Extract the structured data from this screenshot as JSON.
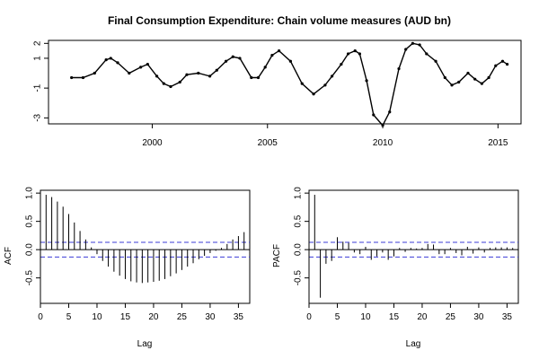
{
  "chart_data": [
    {
      "type": "line",
      "title": "Final Consumption Expenditure: Chain volume measures (AUD bn)",
      "xlabel": "",
      "ylabel": "",
      "xlim": [
        1995.5,
        2016.0
      ],
      "ylim": [
        -3.4,
        2.2
      ],
      "x_ticks": [
        2000,
        2005,
        2010,
        2015
      ],
      "y_ticks": [
        -3,
        -1,
        1,
        2
      ],
      "grid": false,
      "markers": true,
      "series": [
        {
          "x": [
            1996.5,
            1997.0,
            1997.5,
            1998.0,
            1998.2,
            1998.5,
            1999.0,
            1999.5,
            1999.8,
            2000.2,
            2000.5,
            2000.8,
            2001.2,
            2001.5,
            2002.0,
            2002.5,
            2002.8,
            2003.2,
            2003.5,
            2003.8,
            2004.3,
            2004.6,
            2004.9,
            2005.2,
            2005.5,
            2006.0,
            2006.5,
            2007.0,
            2007.5,
            2007.8,
            2008.2,
            2008.5,
            2008.8,
            2009.0,
            2009.3,
            2009.6,
            2010.0,
            2010.3,
            2010.7,
            2011.0,
            2011.3,
            2011.6,
            2011.9,
            2012.3,
            2012.7,
            2013.0,
            2013.3,
            2013.7,
            2014.0,
            2014.3,
            2014.6,
            2014.9,
            2015.2,
            2015.4
          ],
          "y": [
            -0.3,
            -0.3,
            0.0,
            0.9,
            1.0,
            0.7,
            0.0,
            0.4,
            0.6,
            -0.2,
            -0.7,
            -0.9,
            -0.6,
            -0.1,
            0.0,
            -0.2,
            0.2,
            0.8,
            1.1,
            1.0,
            -0.3,
            -0.3,
            0.4,
            1.2,
            1.5,
            0.8,
            -0.7,
            -1.4,
            -0.8,
            -0.2,
            0.6,
            1.3,
            1.5,
            1.3,
            -0.5,
            -2.8,
            -3.5,
            -2.6,
            0.3,
            1.6,
            2.0,
            1.9,
            1.3,
            0.8,
            -0.3,
            -0.8,
            -0.6,
            0.0,
            -0.4,
            -0.7,
            -0.3,
            0.5,
            0.8,
            0.6
          ]
        }
      ]
    },
    {
      "type": "bar",
      "xlabel": "Lag",
      "ylabel": "ACF",
      "xlim": [
        0,
        37
      ],
      "ylim": [
        -0.95,
        1.05
      ],
      "x_ticks": [
        0,
        5,
        10,
        15,
        20,
        25,
        30,
        35
      ],
      "y_ticks": [
        -0.5,
        0.0,
        0.5,
        1.0
      ],
      "confidence_bound": 0.13,
      "lags": [
        1,
        2,
        3,
        4,
        5,
        6,
        7,
        8,
        9,
        10,
        11,
        12,
        13,
        14,
        15,
        16,
        17,
        18,
        19,
        20,
        21,
        22,
        23,
        24,
        25,
        26,
        27,
        28,
        29,
        30,
        31,
        32,
        33,
        34,
        35,
        36
      ],
      "values": [
        0.97,
        0.93,
        0.85,
        0.76,
        0.63,
        0.48,
        0.33,
        0.18,
        0.04,
        -0.08,
        -0.2,
        -0.3,
        -0.39,
        -0.46,
        -0.52,
        -0.56,
        -0.58,
        -0.59,
        -0.58,
        -0.57,
        -0.55,
        -0.52,
        -0.47,
        -0.42,
        -0.36,
        -0.3,
        -0.24,
        -0.17,
        -0.11,
        -0.06,
        -0.02,
        0.03,
        0.1,
        0.18,
        0.24,
        0.31
      ]
    },
    {
      "type": "bar",
      "xlabel": "Lag",
      "ylabel": "PACF",
      "xlim": [
        0,
        37
      ],
      "ylim": [
        -0.95,
        1.05
      ],
      "x_ticks": [
        0,
        5,
        10,
        15,
        20,
        25,
        30,
        35
      ],
      "y_ticks": [
        -0.5,
        0.0,
        0.5,
        1.0
      ],
      "confidence_bound": 0.13,
      "lags": [
        1,
        2,
        3,
        4,
        5,
        6,
        7,
        8,
        9,
        10,
        11,
        12,
        13,
        14,
        15,
        16,
        17,
        18,
        19,
        20,
        21,
        22,
        23,
        24,
        25,
        26,
        27,
        28,
        29,
        30,
        31,
        32,
        33,
        34,
        35,
        36
      ],
      "values": [
        0.97,
        -0.85,
        -0.25,
        -0.2,
        0.22,
        0.14,
        0.12,
        -0.05,
        -0.08,
        0.05,
        -0.18,
        -0.12,
        -0.05,
        -0.18,
        -0.12,
        0.03,
        -0.04,
        0.03,
        0.02,
        0.03,
        0.1,
        0.09,
        -0.08,
        -0.08,
        0.03,
        -0.06,
        -0.1,
        0.05,
        -0.07,
        0.04,
        -0.05,
        0.03,
        0.04,
        0.04,
        0.04,
        0.03
      ]
    }
  ]
}
